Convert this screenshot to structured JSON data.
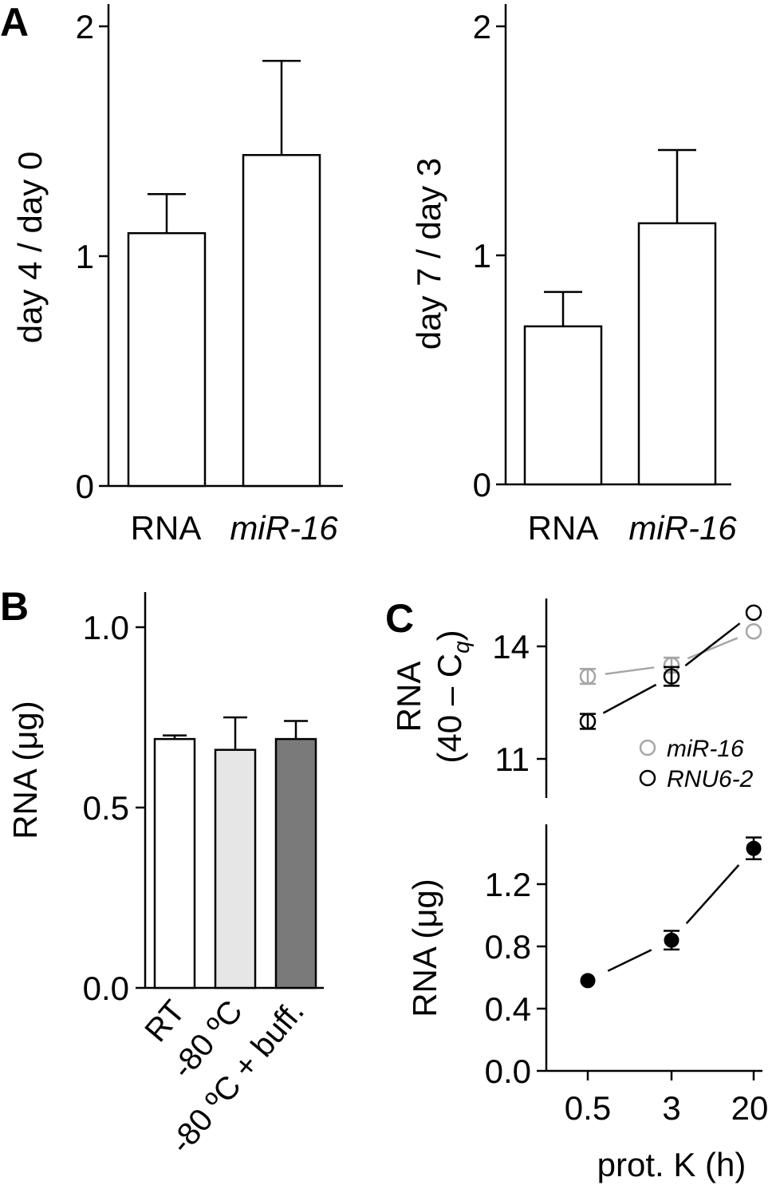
{
  "panels": {
    "A": "A",
    "B": "B",
    "C": "C"
  },
  "colors": {
    "ink": "#000000",
    "white_bar": "#ffffff",
    "light_bar": "#e6e6e6",
    "dark_bar": "#7a7a7a",
    "grey_series": "#a6a6a6"
  },
  "chart_data": [
    {
      "id": "A-left",
      "type": "bar",
      "ylabel": "day 4 / day 0",
      "categories": [
        "RNA",
        "miR-16"
      ],
      "italic_categories": [
        false,
        true
      ],
      "values": [
        1.1,
        1.44
      ],
      "errors": [
        0.17,
        0.41
      ],
      "yticks": [
        "0",
        "1",
        "2"
      ],
      "ylim": [
        0,
        2.08
      ],
      "fill": [
        "#ffffff",
        "#ffffff"
      ]
    },
    {
      "id": "A-right",
      "type": "bar",
      "ylabel": "day 7 / day 3",
      "categories": [
        "RNA",
        "miR-16"
      ],
      "italic_categories": [
        false,
        true
      ],
      "values": [
        0.69,
        1.14
      ],
      "errors": [
        0.15,
        0.32
      ],
      "yticks": [
        "0",
        "1",
        "2"
      ],
      "ylim": [
        0,
        2.08
      ],
      "fill": [
        "#ffffff",
        "#ffffff"
      ]
    },
    {
      "id": "B",
      "type": "bar",
      "ylabel": "RNA (μg)",
      "categories": [
        "RT",
        "-80 ºC",
        "-80 ºC + buff."
      ],
      "values": [
        0.69,
        0.66,
        0.69
      ],
      "errors": [
        0.01,
        0.09,
        0.05
      ],
      "yticks": [
        "0.0",
        "0.5",
        "1.0"
      ],
      "ylim": [
        0,
        1.1
      ],
      "fill": [
        "#ffffff",
        "#e6e6e6",
        "#7a7a7a"
      ]
    },
    {
      "id": "C-top",
      "type": "scatter",
      "ylabel_line1": "RNA",
      "ylabel_line2_prefix": "(40 – C",
      "ylabel_line2_sub": "q",
      "ylabel_line2_suffix": ")",
      "yticks": [
        "11",
        "14"
      ],
      "ylim": [
        9.5,
        15.3
      ],
      "x": [
        "0.5",
        "3",
        "20"
      ],
      "series": [
        {
          "name": "miR-16",
          "values": [
            13.2,
            13.5,
            14.4
          ],
          "errors": [
            0.2,
            0.2,
            0.0
          ],
          "color": "#a6a6a6"
        },
        {
          "name": "RNU6-2",
          "values": [
            12.0,
            13.2,
            14.9
          ],
          "errors": [
            0.2,
            0.25,
            0.0
          ],
          "color": "#000000"
        }
      ],
      "legend_position": "bottom-right"
    },
    {
      "id": "C-bottom",
      "type": "scatter",
      "ylabel": "RNA (μg)",
      "xlabel": "prot. K (h)",
      "x": [
        "0.5",
        "3",
        "20"
      ],
      "values": [
        0.58,
        0.84,
        1.43
      ],
      "errors": [
        0.0,
        0.06,
        0.07
      ],
      "yticks": [
        "0.0",
        "0.4",
        "0.8",
        "1.2"
      ],
      "ylim": [
        0,
        1.53
      ]
    }
  ]
}
